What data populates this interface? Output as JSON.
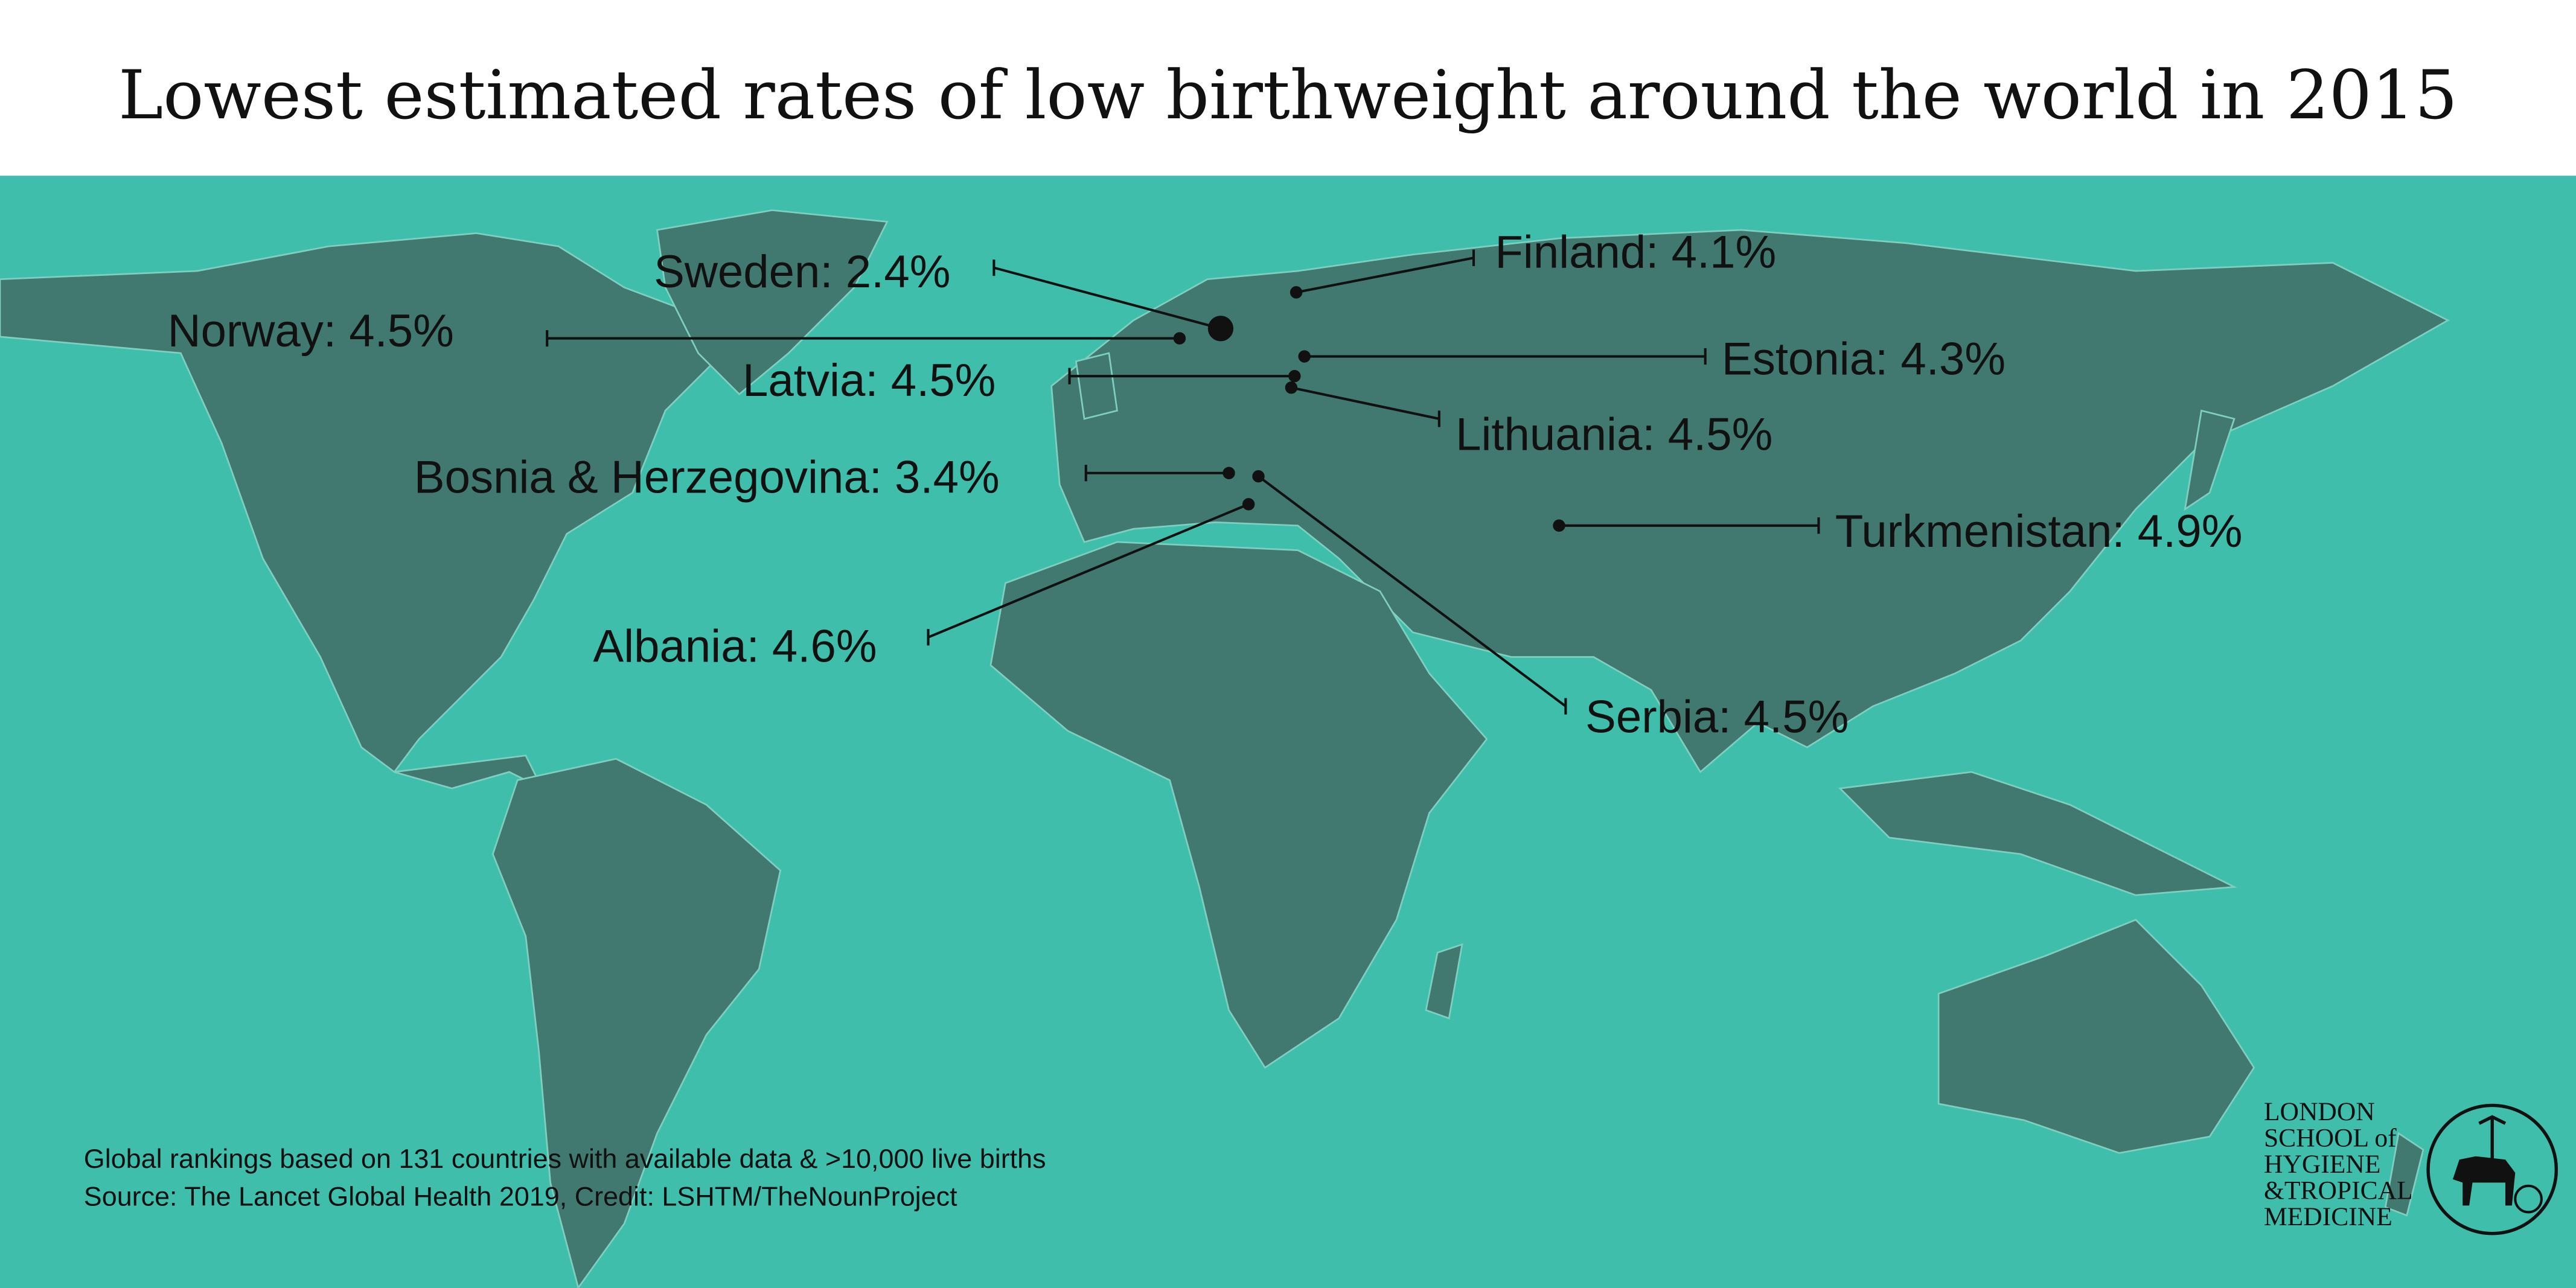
{
  "title": "Lowest estimated rates of low birthweight around the world in 2015",
  "colors": {
    "sea": "#3fbfab",
    "land": "#417870",
    "borders": "#7fcfc0",
    "header": "#ffffff",
    "ink": "#111111"
  },
  "annotations": [
    {
      "country": "Sweden",
      "label": "Sweden: 2.4%",
      "value": 2.4,
      "highlight": true
    },
    {
      "country": "Finland",
      "label": "Finland: 4.1%",
      "value": 4.1
    },
    {
      "country": "Norway",
      "label": "Norway: 4.5%",
      "value": 4.5
    },
    {
      "country": "Estonia",
      "label": "Estonia: 4.3%",
      "value": 4.3
    },
    {
      "country": "Latvia",
      "label": "Latvia: 4.5%",
      "value": 4.5
    },
    {
      "country": "Lithuania",
      "label": "Lithuania: 4.5%",
      "value": 4.5
    },
    {
      "country": "Bosnia & Herzegovina",
      "label": "Bosnia & Herzegovina: 3.4%",
      "value": 3.4
    },
    {
      "country": "Turkmenistan",
      "label": "Turkmenistan: 4.9%",
      "value": 4.9
    },
    {
      "country": "Albania",
      "label": "Albania: 4.6%",
      "value": 4.6
    },
    {
      "country": "Serbia",
      "label": "Serbia: 4.5%",
      "value": 4.5
    }
  ],
  "footer": {
    "note": "Global rankings based on 131 countries with available data & >10,000 live births",
    "source": "Source: The Lancet Global Health 2019, Credit: LSHTM/TheNounProject"
  },
  "logo": {
    "lines": [
      "LONDON",
      "SCHOOL of",
      "HYGIENE",
      "&TROPICAL",
      "MEDICINE"
    ]
  }
}
